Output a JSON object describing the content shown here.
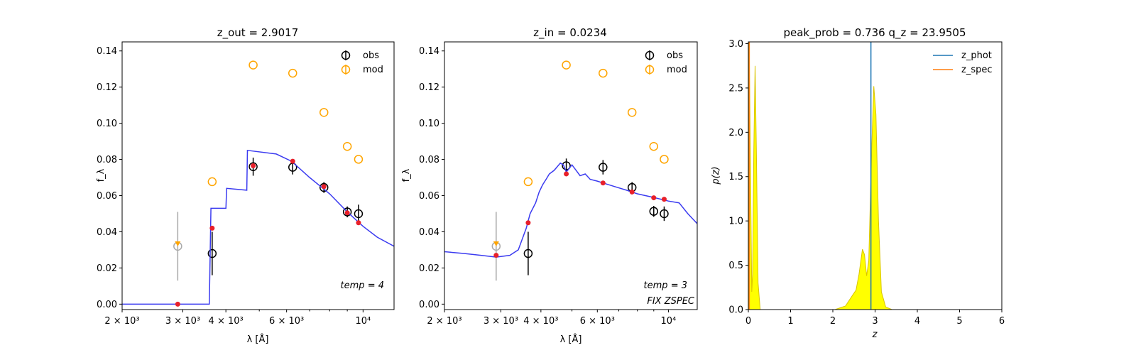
{
  "colors": {
    "obs": "#000000",
    "mod": "#ffa500",
    "sed_line": "#3b3bf0",
    "model_point": "#e8202a",
    "outlier": "#a9a9a9",
    "z_phot": "#1f77b4",
    "z_spec": "#ff7f0e",
    "pz_fill": "#ffff00",
    "pz_edge": "#d9c400"
  },
  "chart_data": [
    {
      "type": "scatter",
      "title": "z_out = 2.9017",
      "xlabel": "λ [Å]",
      "ylabel": "f_λ",
      "xscale": "log",
      "xlim": [
        2000,
        12300
      ],
      "ylim": [
        -0.003,
        0.145
      ],
      "xticks": [
        {
          "value": 2000,
          "label": "2 × 10³"
        },
        {
          "value": 3000,
          "label": "3 × 10³"
        },
        {
          "value": 4000,
          "label": "4 × 10³"
        },
        {
          "value": 6000,
          "label": "6 × 10³"
        },
        {
          "value": 10000,
          "label": "10⁴"
        }
      ],
      "yticks": [
        0.0,
        0.02,
        0.04,
        0.06,
        0.08,
        0.1,
        0.12,
        0.14
      ],
      "yticklabels": [
        "0.00",
        "0.02",
        "0.04",
        "0.06",
        "0.08",
        "0.10",
        "0.12",
        "0.14"
      ],
      "legend": {
        "position": "upper-right",
        "entries": [
          "obs",
          "mod"
        ]
      },
      "annotations": [
        "temp = 4"
      ],
      "series": [
        {
          "name": "obs",
          "style": "errorbar-open-circle",
          "points": [
            [
              3650,
              0.028,
              0.012
            ],
            [
              4800,
              0.076,
              0.005
            ],
            [
              6250,
              0.0757,
              0.004
            ],
            [
              7700,
              0.0645,
              0.003
            ],
            [
              9000,
              0.051,
              0.003
            ],
            [
              9700,
              0.05,
              0.005
            ]
          ]
        },
        {
          "name": "mod",
          "style": "open-circle",
          "points": [
            [
              3650,
              0.0677
            ],
            [
              4800,
              0.1322
            ],
            [
              6250,
              0.1277
            ],
            [
              7700,
              0.106
            ],
            [
              9000,
              0.0872
            ],
            [
              9700,
              0.0801
            ]
          ]
        },
        {
          "name": "outlier",
          "style": "errorbar-open-circle-grey",
          "points": [
            [
              2900,
              0.032,
              0.019
            ]
          ]
        },
        {
          "name": "outlier-model",
          "style": "triangle",
          "points": [
            [
              2900,
              0.0335
            ]
          ]
        },
        {
          "name": "sed",
          "style": "line",
          "points": [
            [
              2000,
              0.0
            ],
            [
              3580,
              0.0
            ],
            [
              3620,
              0.053
            ],
            [
              4000,
              0.053
            ],
            [
              4020,
              0.064
            ],
            [
              4600,
              0.063
            ],
            [
              4620,
              0.085
            ],
            [
              5600,
              0.083
            ],
            [
              6200,
              0.079
            ],
            [
              7000,
              0.07
            ],
            [
              8000,
              0.061
            ],
            [
              9000,
              0.051
            ],
            [
              10000,
              0.043
            ],
            [
              11000,
              0.037
            ],
            [
              12300,
              0.032
            ]
          ]
        },
        {
          "name": "model-points",
          "style": "dot",
          "points": [
            [
              2900,
              0.0
            ],
            [
              3650,
              0.042
            ],
            [
              4800,
              0.0765
            ],
            [
              6250,
              0.079
            ],
            [
              7700,
              0.065
            ],
            [
              9000,
              0.0505
            ],
            [
              9700,
              0.045
            ]
          ]
        }
      ]
    },
    {
      "type": "scatter",
      "title": "z_in = 0.0234",
      "xlabel": "λ [Å]",
      "ylabel": "f_λ",
      "xscale": "log",
      "xlim": [
        2000,
        12300
      ],
      "ylim": [
        -0.003,
        0.145
      ],
      "xticks": [
        {
          "value": 2000,
          "label": "2 × 10³"
        },
        {
          "value": 3000,
          "label": "3 × 10³"
        },
        {
          "value": 4000,
          "label": "4 × 10³"
        },
        {
          "value": 6000,
          "label": "6 × 10³"
        },
        {
          "value": 10000,
          "label": "10⁴"
        }
      ],
      "yticks": [
        0.0,
        0.02,
        0.04,
        0.06,
        0.08,
        0.1,
        0.12,
        0.14
      ],
      "yticklabels": [
        "0.00",
        "0.02",
        "0.04",
        "0.06",
        "0.08",
        "0.10",
        "0.12",
        "0.14"
      ],
      "legend": {
        "position": "upper-right",
        "entries": [
          "obs",
          "mod"
        ]
      },
      "annotations": [
        "temp = 3",
        "FIX ZSPEC"
      ],
      "series": [
        {
          "name": "obs",
          "style": "errorbar-open-circle",
          "points": [
            [
              3650,
              0.028,
              0.012
            ],
            [
              4800,
              0.0765,
              0.004
            ],
            [
              6250,
              0.0757,
              0.004
            ],
            [
              7700,
              0.0645,
              0.003
            ],
            [
              9000,
              0.0513,
              0.003
            ],
            [
              9700,
              0.05,
              0.004
            ]
          ]
        },
        {
          "name": "mod",
          "style": "open-circle",
          "points": [
            [
              3650,
              0.0677
            ],
            [
              4800,
              0.1322
            ],
            [
              6250,
              0.1277
            ],
            [
              7700,
              0.106
            ],
            [
              9000,
              0.0872
            ],
            [
              9700,
              0.0801
            ]
          ]
        },
        {
          "name": "outlier",
          "style": "errorbar-open-circle-grey",
          "points": [
            [
              2900,
              0.032,
              0.019
            ]
          ]
        },
        {
          "name": "outlier-model",
          "style": "triangle",
          "points": [
            [
              2900,
              0.0335
            ]
          ]
        },
        {
          "name": "sed",
          "style": "line",
          "points": [
            [
              2000,
              0.029
            ],
            [
              2300,
              0.028
            ],
            [
              2600,
              0.027
            ],
            [
              2900,
              0.026
            ],
            [
              3200,
              0.027
            ],
            [
              3400,
              0.03
            ],
            [
              3600,
              0.042
            ],
            [
              3700,
              0.05
            ],
            [
              3850,
              0.056
            ],
            [
              3950,
              0.062
            ],
            [
              4050,
              0.066
            ],
            [
              4150,
              0.069
            ],
            [
              4250,
              0.072
            ],
            [
              4400,
              0.074
            ],
            [
              4500,
              0.076
            ],
            [
              4600,
              0.078
            ],
            [
              4700,
              0.077
            ],
            [
              4800,
              0.073
            ],
            [
              4900,
              0.075
            ],
            [
              5000,
              0.077
            ],
            [
              5150,
              0.074
            ],
            [
              5300,
              0.071
            ],
            [
              5500,
              0.072
            ],
            [
              5700,
              0.069
            ],
            [
              6000,
              0.068
            ],
            [
              6250,
              0.067
            ],
            [
              6800,
              0.065
            ],
            [
              7400,
              0.063
            ],
            [
              8000,
              0.061
            ],
            [
              9000,
              0.059
            ],
            [
              10000,
              0.057
            ],
            [
              10800,
              0.056
            ],
            [
              11500,
              0.05
            ],
            [
              12300,
              0.0445
            ]
          ]
        },
        {
          "name": "model-points",
          "style": "dot",
          "points": [
            [
              2900,
              0.027
            ],
            [
              3650,
              0.045
            ],
            [
              4800,
              0.072
            ],
            [
              6250,
              0.067
            ],
            [
              7700,
              0.062
            ],
            [
              9000,
              0.0588
            ],
            [
              9700,
              0.058
            ]
          ]
        }
      ]
    },
    {
      "type": "area",
      "title": "peak_prob = 0.736      q_z = 23.9505",
      "xlabel": "z",
      "ylabel": "p(z)",
      "xscale": "linear",
      "xlim": [
        0,
        6
      ],
      "ylim": [
        0,
        3.02
      ],
      "xticks": [
        {
          "value": 0,
          "label": "0"
        },
        {
          "value": 1,
          "label": "1"
        },
        {
          "value": 2,
          "label": "2"
        },
        {
          "value": 3,
          "label": "3"
        },
        {
          "value": 4,
          "label": "4"
        },
        {
          "value": 5,
          "label": "5"
        },
        {
          "value": 6,
          "label": "6"
        }
      ],
      "yticks": [
        0.0,
        0.5,
        1.0,
        1.5,
        2.0,
        2.5,
        3.0
      ],
      "yticklabels": [
        "0.0",
        "0.5",
        "1.0",
        "1.5",
        "2.0",
        "2.5",
        "3.0"
      ],
      "legend": {
        "position": "upper-right",
        "entries": [
          "z_phot",
          "z_spec"
        ]
      },
      "vlines": [
        {
          "name": "z_phot",
          "x": 2.9017
        },
        {
          "name": "z_spec",
          "x": 0.0234
        }
      ],
      "series": [
        {
          "name": "p(z)",
          "style": "filled-area",
          "points": [
            [
              0,
              0
            ],
            [
              0.005,
              3.0
            ],
            [
              0.02,
              3.0
            ],
            [
              0.05,
              1.6
            ],
            [
              0.08,
              0.2
            ],
            [
              0.1,
              0.4
            ],
            [
              0.13,
              1.8
            ],
            [
              0.16,
              2.75
            ],
            [
              0.19,
              1.8
            ],
            [
              0.23,
              0.3
            ],
            [
              0.28,
              0.0
            ],
            [
              2.05,
              0.0
            ],
            [
              2.3,
              0.04
            ],
            [
              2.45,
              0.15
            ],
            [
              2.55,
              0.22
            ],
            [
              2.62,
              0.4
            ],
            [
              2.7,
              0.68
            ],
            [
              2.75,
              0.62
            ],
            [
              2.8,
              0.38
            ],
            [
              2.85,
              0.55
            ],
            [
              2.92,
              1.8
            ],
            [
              2.97,
              2.52
            ],
            [
              3.02,
              2.2
            ],
            [
              3.08,
              1.0
            ],
            [
              3.15,
              0.2
            ],
            [
              3.25,
              0.03
            ],
            [
              3.4,
              0.0
            ],
            [
              6,
              0
            ]
          ]
        }
      ]
    }
  ]
}
